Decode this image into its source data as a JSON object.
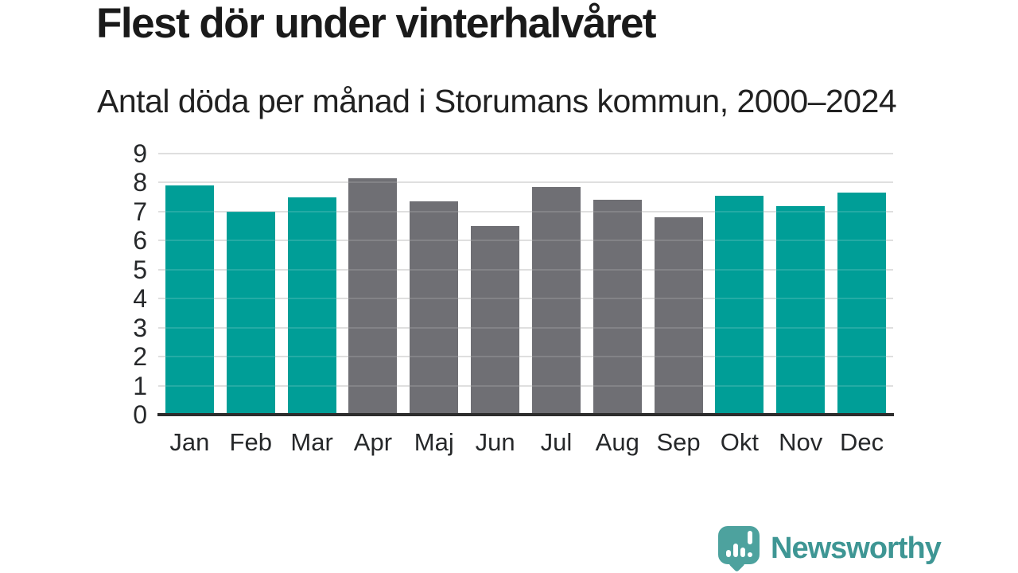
{
  "header": {
    "title": "Flest dör under vinterhalvåret",
    "subtitle": "Antal döda per månad i Storumans kommun, 2000–2024"
  },
  "chart_data": {
    "type": "bar",
    "title": "Flest dör under vinterhalvåret",
    "subtitle": "Antal döda per månad i Storumans kommun, 2000–2024",
    "categories": [
      "Jan",
      "Feb",
      "Mar",
      "Apr",
      "Maj",
      "Jun",
      "Jul",
      "Aug",
      "Sep",
      "Okt",
      "Nov",
      "Dec"
    ],
    "values": [
      7.9,
      7.0,
      7.5,
      8.15,
      7.35,
      6.5,
      7.85,
      7.4,
      6.8,
      7.55,
      7.2,
      7.65
    ],
    "bar_colors": [
      "#009E97",
      "#009E97",
      "#009E97",
      "#6F6F74",
      "#6F6F74",
      "#6F6F74",
      "#6F6F74",
      "#6F6F74",
      "#6F6F74",
      "#009E97",
      "#009E97",
      "#009E97"
    ],
    "xlabel": "",
    "ylabel": "",
    "ylim": [
      0,
      9
    ],
    "yticks": [
      0,
      1,
      2,
      3,
      4,
      5,
      6,
      7,
      8,
      9
    ],
    "grid": "horizontal",
    "legend": "none",
    "colors": {
      "accent_teal": "#009E97",
      "neutral_gray": "#6F6F74",
      "gridline": "#dadada",
      "axis_line": "#2d2d2d",
      "text": "#26282a"
    }
  },
  "footer": {
    "brand": "Newsworthy",
    "brand_text_color": "#3E9694",
    "logo_bubble_color": "#4DA29E"
  }
}
